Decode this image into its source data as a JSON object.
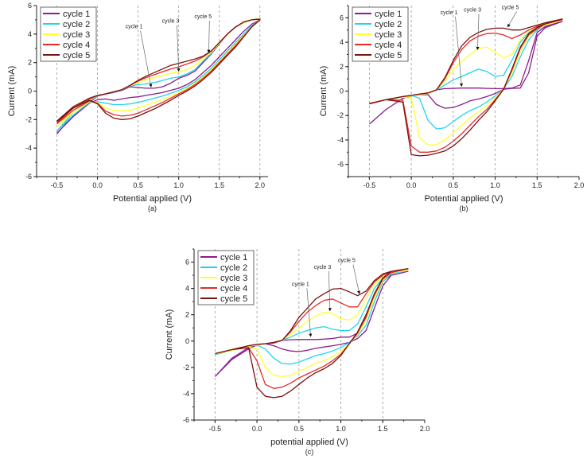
{
  "colors": {
    "cycle 1": "#8B1C8E",
    "cycle 2": "#22D3EE",
    "cycle 3": "#FFFF30",
    "cycle 4": "#E52A2A",
    "cycle 5": "#7A1212"
  },
  "chart_data": [
    {
      "type": "line",
      "caption": "(a)",
      "xlabel": "Potential applied (V)",
      "ylabel": "Current (mA)",
      "xlim": [
        -0.75,
        2.1
      ],
      "ylim": [
        -6,
        6
      ],
      "xticks": [
        -0.5,
        0.0,
        0.5,
        1.0,
        1.5,
        2.0
      ],
      "xtick_labels": [
        "-0.5",
        "0.0",
        "0.5",
        "1.0",
        "1.5",
        "2.0"
      ],
      "yticks": [
        -6,
        -4,
        -2,
        0,
        2,
        4,
        6
      ],
      "ytick_labels": [
        "-6",
        "-4",
        "-2",
        "0",
        "2",
        "4",
        "6"
      ],
      "gridlines_x": [
        -0.5,
        0.0,
        0.5,
        1.0,
        1.5,
        2.0
      ],
      "legend": [
        "cycle 1",
        "cycle 2",
        "cycle 3",
        "cycle 4",
        "cycle 5"
      ],
      "legend_position": "top-left",
      "x": [
        -0.5,
        -0.3,
        -0.1,
        0,
        0.1,
        0.2,
        0.3,
        0.4,
        0.5,
        0.6,
        0.7,
        0.8,
        0.9,
        1.0,
        1.1,
        1.2,
        1.3,
        1.4,
        1.5,
        1.6,
        1.7,
        1.8,
        1.9,
        2.0
      ],
      "series": [
        {
          "name": "cycle 1",
          "forward": [
            -3.0,
            -1.7,
            -0.8,
            -0.35,
            -0.2,
            -0.1,
            0.05,
            0.3,
            0.25,
            0.2,
            0.2,
            0.3,
            0.55,
            0.9,
            1.1,
            1.4,
            2.0,
            2.6,
            3.3,
            4.0,
            4.5,
            4.8,
            5.0,
            5.1
          ],
          "reverse": [
            -2.95,
            -1.8,
            -0.85,
            -0.6,
            -0.55,
            -0.65,
            -0.55,
            -0.45,
            -0.4,
            -0.3,
            -0.2,
            -0.1,
            0.05,
            0.2,
            0.45,
            0.8,
            1.3,
            1.8,
            2.4,
            3.0,
            3.6,
            4.2,
            4.7,
            5.0
          ]
        },
        {
          "name": "cycle 2",
          "forward": [
            -2.8,
            -1.5,
            -0.7,
            -0.33,
            -0.18,
            -0.08,
            0.08,
            0.35,
            0.45,
            0.5,
            0.6,
            0.75,
            0.9,
            1.0,
            1.2,
            1.5,
            2.1,
            2.65,
            3.35,
            4.0,
            4.5,
            4.8,
            5.0,
            5.1
          ],
          "reverse": [
            -2.8,
            -1.7,
            -0.8,
            -0.75,
            -0.85,
            -0.95,
            -0.95,
            -0.9,
            -0.8,
            -0.65,
            -0.5,
            -0.35,
            -0.15,
            0.05,
            0.3,
            0.65,
            1.1,
            1.6,
            2.2,
            2.8,
            3.4,
            4.0,
            4.6,
            5.0
          ]
        },
        {
          "name": "cycle 3",
          "forward": [
            -2.5,
            -1.35,
            -0.62,
            -0.32,
            -0.18,
            -0.06,
            0.09,
            0.38,
            0.6,
            0.8,
            0.95,
            1.1,
            1.25,
            1.35,
            1.5,
            1.8,
            2.3,
            2.7,
            3.35,
            4.0,
            4.5,
            4.8,
            5.0,
            5.1
          ],
          "reverse": [
            -2.5,
            -1.5,
            -0.75,
            -0.8,
            -1.2,
            -1.35,
            -1.4,
            -1.35,
            -1.2,
            -1.0,
            -0.8,
            -0.6,
            -0.35,
            -0.1,
            0.2,
            0.55,
            1.0,
            1.5,
            2.1,
            2.7,
            3.3,
            3.9,
            4.5,
            5.0
          ]
        },
        {
          "name": "cycle 4",
          "forward": [
            -2.25,
            -1.2,
            -0.55,
            -0.31,
            -0.19,
            -0.05,
            0.1,
            0.4,
            0.7,
            0.95,
            1.15,
            1.35,
            1.55,
            1.7,
            1.9,
            2.1,
            2.4,
            2.8,
            3.4,
            4.0,
            4.5,
            4.85,
            5.0,
            5.05
          ],
          "reverse": [
            -2.3,
            -1.35,
            -0.7,
            -0.85,
            -1.4,
            -1.65,
            -1.75,
            -1.7,
            -1.55,
            -1.3,
            -1.05,
            -0.8,
            -0.5,
            -0.2,
            0.1,
            0.45,
            0.9,
            1.4,
            2.0,
            2.6,
            3.2,
            3.85,
            4.5,
            5.0
          ]
        },
        {
          "name": "cycle 5",
          "forward": [
            -2.1,
            -1.1,
            -0.5,
            -0.3,
            -0.2,
            -0.05,
            0.1,
            0.4,
            0.75,
            1.05,
            1.3,
            1.55,
            1.8,
            1.95,
            2.1,
            2.25,
            2.45,
            2.8,
            3.4,
            4.0,
            4.5,
            4.85,
            5.0,
            5.05
          ],
          "reverse": [
            -2.15,
            -1.2,
            -0.65,
            -0.9,
            -1.55,
            -1.9,
            -2.0,
            -1.95,
            -1.75,
            -1.5,
            -1.25,
            -0.95,
            -0.65,
            -0.3,
            0.0,
            0.35,
            0.8,
            1.3,
            1.9,
            2.5,
            3.1,
            3.8,
            4.5,
            5.0
          ]
        }
      ],
      "annotations": [
        {
          "text": "cycle 1",
          "at": [
            0.45,
            4.4
          ],
          "target": [
            0.66,
            0.3
          ]
        },
        {
          "text": "cycle 3",
          "at": [
            0.9,
            4.8
          ],
          "target": [
            1.0,
            1.4
          ]
        },
        {
          "text": "cycle 5",
          "at": [
            1.3,
            5.1
          ],
          "target": [
            1.37,
            2.7
          ]
        }
      ]
    },
    {
      "type": "line",
      "caption": "(b)",
      "xlabel": "Potential applied (V)",
      "ylabel": "Current (mA)",
      "xlim": [
        -0.75,
        2.0
      ],
      "ylim": [
        -7,
        7
      ],
      "xticks": [
        -0.5,
        0.0,
        0.5,
        1.0,
        1.5,
        2.0
      ],
      "xtick_labels": [
        "-0.5",
        "0.0",
        "0.5",
        "1.0",
        "1.5",
        "2.0"
      ],
      "yticks": [
        -6,
        -4,
        -2,
        0,
        2,
        4,
        6
      ],
      "ytick_labels": [
        "-6",
        "-4",
        "-2",
        "0",
        "2",
        "4",
        "6"
      ],
      "gridlines_x": [
        -0.5,
        0.0,
        0.5,
        1.0,
        1.5
      ],
      "legend": [
        "cycle 1",
        "cycle 2",
        "cycle 3",
        "cycle 4",
        "cycle 5"
      ],
      "legend_position": "top-left",
      "x": [
        -0.5,
        -0.3,
        -0.1,
        0,
        0.1,
        0.2,
        0.3,
        0.4,
        0.5,
        0.6,
        0.7,
        0.8,
        0.9,
        1.0,
        1.1,
        1.2,
        1.3,
        1.4,
        1.5,
        1.6,
        1.8
      ],
      "series": [
        {
          "name": "cycle 1",
          "forward": [
            -2.7,
            -1.5,
            -0.6,
            -0.4,
            -0.3,
            -0.2,
            0.1,
            0.2,
            0.22,
            0.25,
            0.25,
            0.25,
            0.22,
            0.2,
            0.2,
            0.25,
            0.5,
            2.5,
            4.8,
            5.3,
            5.7
          ],
          "reverse": [
            -2.7,
            -1.5,
            -0.6,
            -0.4,
            -0.3,
            -0.3,
            -1.1,
            -1.4,
            -1.35,
            -1.1,
            -0.8,
            -0.65,
            -0.45,
            -0.2,
            0.15,
            0.22,
            0.25,
            1.5,
            4.5,
            5.2,
            5.7
          ]
        },
        {
          "name": "cycle 2",
          "forward": [
            -1.0,
            -0.7,
            -0.5,
            -0.4,
            -0.3,
            -0.2,
            0.1,
            0.5,
            0.9,
            1.2,
            1.5,
            1.8,
            1.6,
            1.2,
            1.3,
            2.5,
            4.0,
            4.8,
            5.2,
            5.5,
            5.8
          ],
          "reverse": [
            -1.0,
            -0.7,
            -0.45,
            -0.35,
            -0.6,
            -2.4,
            -3.1,
            -3.0,
            -2.5,
            -2.0,
            -1.6,
            -1.3,
            -0.9,
            -0.4,
            0.15,
            1.2,
            2.8,
            4.2,
            5.0,
            5.4,
            5.8
          ]
        },
        {
          "name": "cycle 3",
          "forward": [
            -1.0,
            -0.7,
            -0.5,
            -0.4,
            -0.3,
            -0.2,
            0.1,
            0.8,
            1.8,
            2.4,
            3.0,
            3.5,
            3.6,
            3.2,
            2.7,
            3.0,
            4.2,
            4.9,
            5.3,
            5.5,
            5.8
          ],
          "reverse": [
            -1.0,
            -0.7,
            -0.5,
            -0.6,
            -3.8,
            -4.4,
            -4.4,
            -4.0,
            -3.4,
            -2.8,
            -2.2,
            -1.7,
            -1.2,
            -0.5,
            0.15,
            1.5,
            3.2,
            4.5,
            5.1,
            5.4,
            5.8
          ]
        },
        {
          "name": "cycle 4",
          "forward": [
            -1.0,
            -0.7,
            -0.45,
            -0.35,
            -0.25,
            -0.15,
            0.1,
            1.0,
            2.3,
            3.4,
            4.1,
            4.5,
            4.7,
            4.75,
            4.6,
            4.3,
            4.6,
            5.0,
            5.3,
            5.5,
            5.85
          ],
          "reverse": [
            -1.0,
            -0.7,
            -0.75,
            -4.5,
            -5.0,
            -5.0,
            -4.9,
            -4.6,
            -4.1,
            -3.5,
            -2.8,
            -2.1,
            -1.5,
            -0.7,
            0.15,
            1.7,
            3.5,
            4.6,
            5.1,
            5.5,
            5.85
          ]
        },
        {
          "name": "cycle 5",
          "forward": [
            -1.05,
            -0.7,
            -0.45,
            -0.35,
            -0.25,
            -0.15,
            0.1,
            1.1,
            2.5,
            3.7,
            4.4,
            4.8,
            5.05,
            5.15,
            5.15,
            5.0,
            5.0,
            5.2,
            5.4,
            5.6,
            5.9
          ],
          "reverse": [
            -1.05,
            -0.7,
            -0.9,
            -5.2,
            -5.3,
            -5.25,
            -5.1,
            -4.9,
            -4.5,
            -3.9,
            -3.2,
            -2.4,
            -1.7,
            -0.8,
            0.15,
            1.8,
            3.6,
            4.7,
            5.2,
            5.5,
            5.9
          ]
        }
      ],
      "annotations": [
        {
          "text": "cycle 1",
          "at": [
            0.45,
            6.3
          ],
          "target": [
            0.6,
            0.4
          ]
        },
        {
          "text": "cycle 3",
          "at": [
            0.73,
            6.5
          ],
          "target": [
            0.79,
            3.4
          ]
        },
        {
          "text": "cycle 5",
          "at": [
            1.18,
            6.7
          ],
          "target": [
            1.15,
            5.25
          ]
        }
      ]
    },
    {
      "type": "line",
      "caption": "(c)",
      "xlabel": "potential applied (V)",
      "ylabel": "Current (mA)",
      "xlim": [
        -0.75,
        2.0
      ],
      "ylim": [
        -6,
        7
      ],
      "xticks": [
        -0.5,
        0.0,
        0.5,
        1.0,
        1.5,
        2.0
      ],
      "xtick_labels": [
        "-0.5",
        "0.0",
        "0.5",
        "1.0",
        "1.5",
        "2.0"
      ],
      "yticks": [
        -6,
        -4,
        -2,
        0,
        2,
        4,
        6
      ],
      "ytick_labels": [
        "-6",
        "-4",
        "-2",
        "0",
        "2",
        "4",
        "6"
      ],
      "gridlines_x": [
        -0.5,
        0.0,
        0.5,
        1.0,
        1.5
      ],
      "legend": [
        "cycle 1",
        "cycle 2",
        "cycle 3",
        "cycle 4",
        "cycle 5"
      ],
      "legend_position": "top-left",
      "x": [
        -0.5,
        -0.3,
        -0.1,
        0,
        0.1,
        0.2,
        0.3,
        0.4,
        0.5,
        0.6,
        0.7,
        0.8,
        0.9,
        1.0,
        1.1,
        1.2,
        1.3,
        1.4,
        1.5,
        1.6,
        1.8
      ],
      "series": [
        {
          "name": "cycle 1",
          "forward": [
            -2.7,
            -1.3,
            -0.5,
            -0.3,
            -0.2,
            -0.15,
            0.05,
            0.1,
            0.12,
            0.12,
            0.12,
            0.15,
            0.2,
            0.3,
            0.3,
            0.6,
            1.8,
            3.6,
            4.6,
            5.0,
            5.3
          ],
          "reverse": [
            -2.7,
            -1.4,
            -0.6,
            -0.3,
            -0.2,
            -0.35,
            -0.6,
            -0.75,
            -0.8,
            -0.7,
            -0.55,
            -0.45,
            -0.35,
            -0.25,
            -0.1,
            0.2,
            0.8,
            2.5,
            4.2,
            5.0,
            5.3
          ]
        },
        {
          "name": "cycle 2",
          "forward": [
            -1.05,
            -0.7,
            -0.4,
            -0.3,
            -0.2,
            -0.1,
            0.05,
            0.3,
            0.6,
            0.8,
            1.0,
            1.1,
            0.9,
            0.8,
            0.8,
            1.3,
            2.6,
            4.0,
            4.8,
            5.1,
            5.4
          ],
          "reverse": [
            -1.05,
            -0.7,
            -0.4,
            -0.3,
            -0.6,
            -1.3,
            -1.7,
            -1.75,
            -1.6,
            -1.35,
            -1.1,
            -0.95,
            -0.75,
            -0.5,
            -0.1,
            0.4,
            1.2,
            3.0,
            4.5,
            5.1,
            5.4
          ]
        },
        {
          "name": "cycle 3",
          "forward": [
            -1.0,
            -0.7,
            -0.4,
            -0.3,
            -0.2,
            -0.1,
            0.05,
            0.5,
            1.0,
            1.5,
            1.9,
            2.2,
            2.1,
            1.7,
            1.6,
            2.0,
            3.2,
            4.3,
            4.9,
            5.2,
            5.4
          ],
          "reverse": [
            -1.0,
            -0.7,
            -0.45,
            -0.6,
            -2.0,
            -2.6,
            -2.7,
            -2.6,
            -2.3,
            -2.0,
            -1.7,
            -1.5,
            -1.2,
            -0.8,
            -0.2,
            0.5,
            1.6,
            3.3,
            4.6,
            5.2,
            5.4
          ]
        },
        {
          "name": "cycle 4",
          "forward": [
            -0.95,
            -0.65,
            -0.35,
            -0.25,
            -0.2,
            -0.1,
            0.05,
            0.7,
            1.5,
            2.2,
            2.7,
            3.1,
            3.2,
            2.9,
            2.6,
            2.6,
            3.6,
            4.5,
            5.0,
            5.3,
            5.5
          ],
          "reverse": [
            -0.95,
            -0.65,
            -0.5,
            -1.5,
            -3.3,
            -3.6,
            -3.5,
            -3.2,
            -2.8,
            -2.5,
            -2.2,
            -1.9,
            -1.5,
            -1.0,
            -0.2,
            0.6,
            1.9,
            3.5,
            4.7,
            5.2,
            5.5
          ]
        },
        {
          "name": "cycle 5",
          "forward": [
            -0.95,
            -0.65,
            -0.35,
            -0.25,
            -0.2,
            -0.1,
            0.05,
            0.8,
            1.8,
            2.5,
            3.2,
            3.6,
            3.95,
            4.0,
            3.75,
            3.45,
            3.8,
            4.6,
            5.1,
            5.3,
            5.5
          ],
          "reverse": [
            -0.95,
            -0.65,
            -0.5,
            -3.5,
            -4.2,
            -4.3,
            -4.2,
            -3.8,
            -3.3,
            -2.8,
            -2.4,
            -2.1,
            -1.7,
            -1.1,
            -0.2,
            0.7,
            2.0,
            3.6,
            4.8,
            5.3,
            5.5
          ]
        }
      ],
      "annotations": [
        {
          "text": "cycle 1",
          "at": [
            0.52,
            4.2
          ],
          "target": [
            0.64,
            0.35
          ]
        },
        {
          "text": "cycle 3",
          "at": [
            0.78,
            5.5
          ],
          "target": [
            0.87,
            2.3
          ]
        },
        {
          "text": "cycle 5",
          "at": [
            1.07,
            6.0
          ],
          "target": [
            1.22,
            3.6
          ]
        }
      ]
    }
  ]
}
